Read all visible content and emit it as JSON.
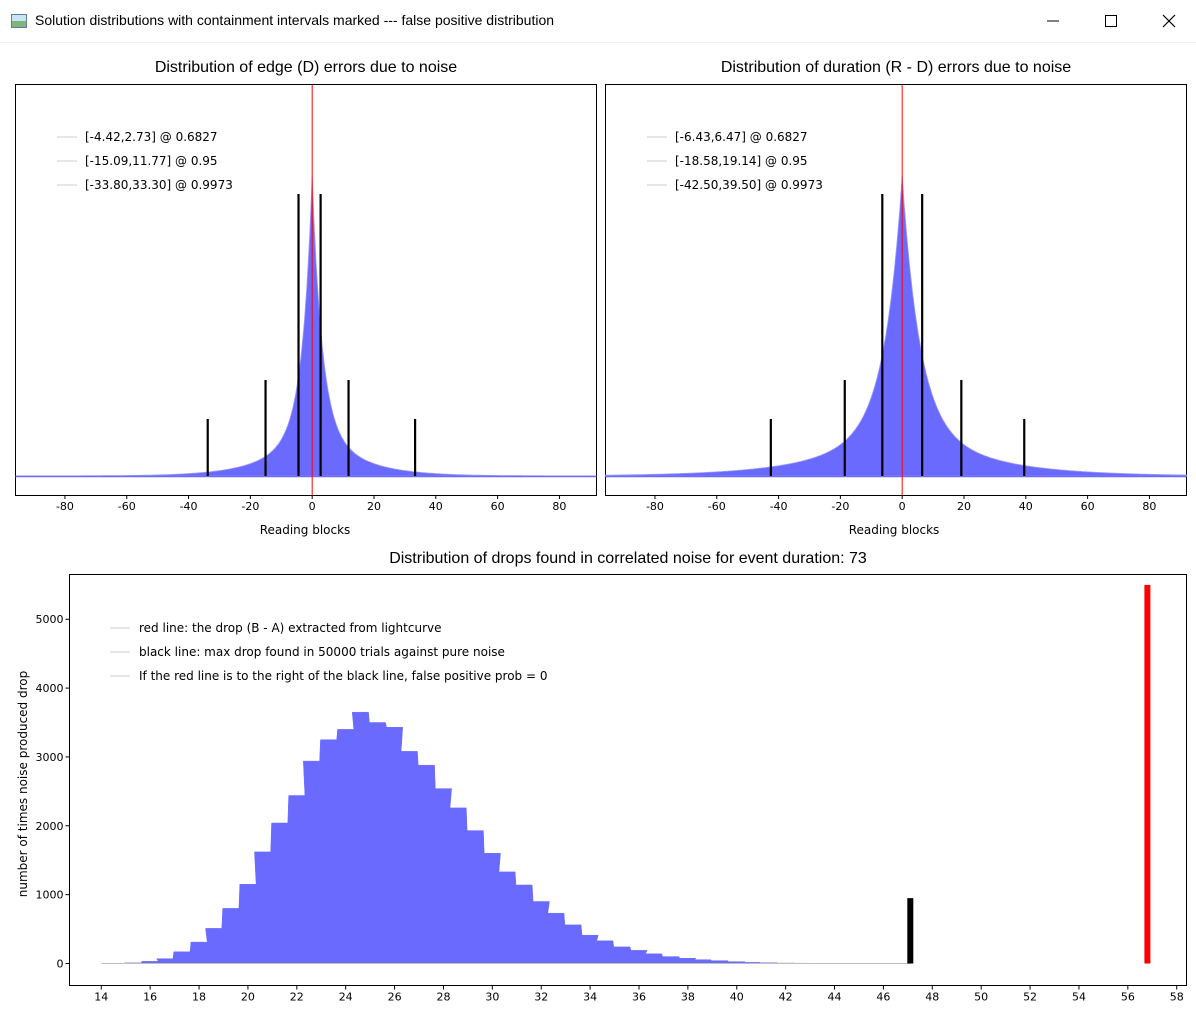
{
  "window": {
    "title": "Solution distributions with containment intervals marked --- false positive distribution",
    "minimize_icon": "minimize-icon",
    "maximize_icon": "maximize-icon",
    "close_icon": "close-icon"
  },
  "colors": {
    "fill": "#6a6aff",
    "fill_light": "#9b9bf7",
    "red": "#ff0000",
    "black": "#000000",
    "legend_line": "#dddddd"
  },
  "chart_data": [
    {
      "type": "histogram",
      "title": "Distribution of edge (D) errors due to noise",
      "xlabel": "Reading blocks",
      "ylabel": "",
      "xlim": [
        -96,
        92
      ],
      "x_ticks": [
        "-80",
        "-60",
        "-40",
        "-20",
        "0",
        "20",
        "40",
        "60",
        "80"
      ],
      "x_tick_values": [
        -80,
        -60,
        -40,
        -20,
        0,
        20,
        40,
        60,
        80
      ],
      "peak_x": 0,
      "shape": "laplace",
      "center_line_x": 0,
      "legend": [
        "[-4.42,2.73] @ 0.6827",
        "[-15.09,11.77] @ 0.95",
        "[-33.80,33.30] @ 0.9973"
      ],
      "intervals": [
        {
          "low": -4.42,
          "high": 2.73,
          "level": 0.6827
        },
        {
          "low": -15.09,
          "high": 11.77,
          "level": 0.95
        },
        {
          "low": -33.8,
          "high": 33.3,
          "level": 0.9973
        }
      ]
    },
    {
      "type": "histogram",
      "title": "Distribution of duration (R - D) errors due to noise",
      "xlabel": "Reading blocks",
      "ylabel": "",
      "xlim": [
        -96,
        92
      ],
      "x_ticks": [
        "-80",
        "-60",
        "-40",
        "-20",
        "0",
        "20",
        "40",
        "60",
        "80"
      ],
      "x_tick_values": [
        -80,
        -60,
        -40,
        -20,
        0,
        20,
        40,
        60,
        80
      ],
      "peak_x": 0,
      "shape": "laplace",
      "center_line_x": 0,
      "legend": [
        "[-6.43,6.47] @ 0.6827",
        "[-18.58,19.14] @ 0.95",
        "[-42.50,39.50] @ 0.9973"
      ],
      "intervals": [
        {
          "low": -6.43,
          "high": 6.47,
          "level": 0.6827
        },
        {
          "low": -18.58,
          "high": 19.14,
          "level": 0.95
        },
        {
          "low": -42.5,
          "high": 39.5,
          "level": 0.9973
        }
      ]
    },
    {
      "type": "histogram",
      "title": "Distribution of drops found in correlated noise for event duration: 73",
      "xlabel": "",
      "ylabel": "number of times noise produced drop",
      "xlim": [
        12.7,
        58.4
      ],
      "ylim": [
        -320,
        5650
      ],
      "x_ticks": [
        "14",
        "16",
        "18",
        "20",
        "22",
        "24",
        "26",
        "28",
        "30",
        "32",
        "34",
        "36",
        "38",
        "40",
        "42",
        "44",
        "46",
        "48",
        "50",
        "52",
        "54",
        "56",
        "58"
      ],
      "x_tick_values": [
        14,
        16,
        18,
        20,
        22,
        24,
        26,
        28,
        30,
        32,
        34,
        36,
        38,
        40,
        42,
        44,
        46,
        48,
        50,
        52,
        54,
        56,
        58
      ],
      "y_ticks": [
        "0",
        "1000",
        "2000",
        "3000",
        "4000",
        "5000"
      ],
      "y_tick_values": [
        0,
        1000,
        2000,
        3000,
        4000,
        5000
      ],
      "legend": [
        "red line: the drop (B - A) extracted from lightcurve",
        "black line: max drop found in 50000 trials against pure noise",
        "If the red line is to the right of the black line, false positive prob = 0"
      ],
      "bins": [
        [
          14.6,
          3
        ],
        [
          15.3,
          8
        ],
        [
          16.0,
          30
        ],
        [
          16.6,
          70
        ],
        [
          17.3,
          170
        ],
        [
          18.0,
          310
        ],
        [
          18.6,
          510
        ],
        [
          19.3,
          800
        ],
        [
          20.0,
          1150
        ],
        [
          20.6,
          1620
        ],
        [
          21.3,
          2040
        ],
        [
          22.0,
          2440
        ],
        [
          22.6,
          2940
        ],
        [
          23.3,
          3250
        ],
        [
          24.0,
          3400
        ],
        [
          24.6,
          3650
        ],
        [
          25.3,
          3500
        ],
        [
          26.0,
          3430
        ],
        [
          26.6,
          3080
        ],
        [
          27.3,
          2880
        ],
        [
          28.0,
          2540
        ],
        [
          28.6,
          2260
        ],
        [
          29.3,
          1930
        ],
        [
          30.0,
          1600
        ],
        [
          30.6,
          1330
        ],
        [
          31.3,
          1140
        ],
        [
          32.0,
          900
        ],
        [
          32.6,
          730
        ],
        [
          33.3,
          560
        ],
        [
          34.0,
          410
        ],
        [
          34.6,
          330
        ],
        [
          35.3,
          240
        ],
        [
          36.0,
          190
        ],
        [
          36.6,
          140
        ],
        [
          37.3,
          100
        ],
        [
          38.0,
          75
        ],
        [
          38.6,
          55
        ],
        [
          39.3,
          40
        ],
        [
          40.0,
          25
        ],
        [
          40.6,
          15
        ],
        [
          41.3,
          10
        ],
        [
          42.0,
          6
        ],
        [
          42.6,
          4
        ],
        [
          43.3,
          2
        ],
        [
          44.0,
          1
        ],
        [
          44.6,
          1
        ],
        [
          45.3,
          1
        ],
        [
          46.0,
          1
        ],
        [
          46.6,
          1
        ]
      ],
      "bin_width": 0.665,
      "black_line": {
        "x": 47.1,
        "height": 950
      },
      "red_line": {
        "x": 56.8,
        "height": 5500
      }
    }
  ]
}
